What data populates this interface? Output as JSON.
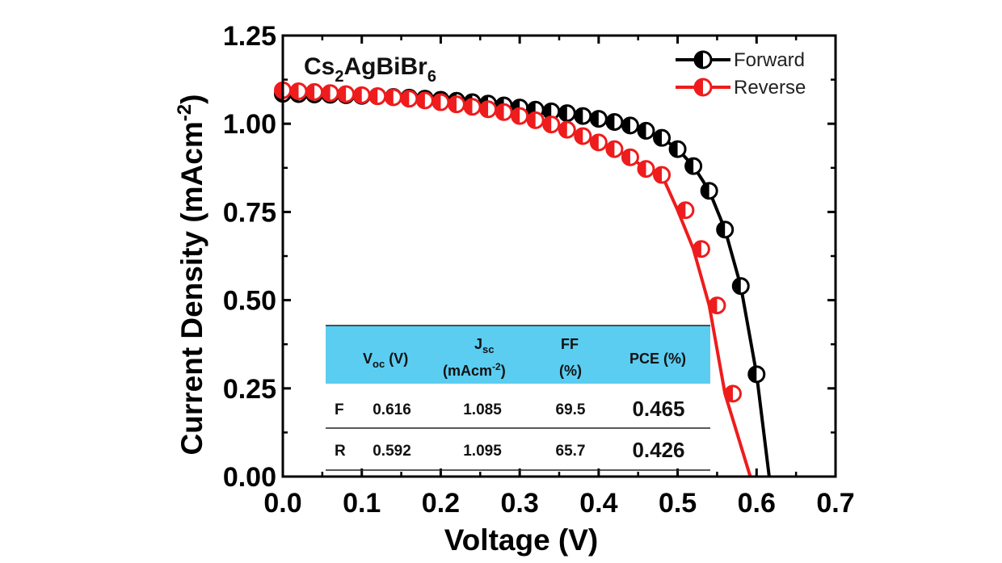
{
  "chart_data": {
    "type": "line",
    "title": "Cs₂AgBiBr₆",
    "title_parts": {
      "base": "Cs",
      "sub1": "2",
      "mid": "AgBiBr",
      "sub2": "6"
    },
    "xlabel": "Voltage (V)",
    "ylabel": "Current Density (mAcm⁻²)",
    "ylabel_parts": {
      "base": "Current Density (mAcm",
      "sup": "-2",
      "end": ")"
    },
    "xlim": [
      0,
      0.7
    ],
    "ylim": [
      0,
      1.25
    ],
    "x_ticks": [
      "0.0",
      "0.1",
      "0.2",
      "0.3",
      "0.4",
      "0.5",
      "0.6",
      "0.7"
    ],
    "y_ticks": [
      "0.00",
      "0.25",
      "0.50",
      "0.75",
      "1.00",
      "1.25"
    ],
    "legend_position": "top-right",
    "series": [
      {
        "name": "Forward",
        "color": "#000000",
        "points": [
          [
            0.0,
            1.085
          ],
          [
            0.02,
            1.084
          ],
          [
            0.04,
            1.083
          ],
          [
            0.06,
            1.082
          ],
          [
            0.08,
            1.081
          ],
          [
            0.1,
            1.079
          ],
          [
            0.12,
            1.078
          ],
          [
            0.14,
            1.076
          ],
          [
            0.16,
            1.074
          ],
          [
            0.18,
            1.071
          ],
          [
            0.2,
            1.068
          ],
          [
            0.22,
            1.065
          ],
          [
            0.24,
            1.061
          ],
          [
            0.26,
            1.057
          ],
          [
            0.28,
            1.052
          ],
          [
            0.3,
            1.046
          ],
          [
            0.32,
            1.04
          ],
          [
            0.34,
            1.035
          ],
          [
            0.36,
            1.03
          ],
          [
            0.38,
            1.022
          ],
          [
            0.4,
            1.014
          ],
          [
            0.42,
            1.005
          ],
          [
            0.44,
            0.995
          ],
          [
            0.46,
            0.98
          ],
          [
            0.48,
            0.96
          ],
          [
            0.5,
            0.928
          ],
          [
            0.52,
            0.88
          ],
          [
            0.54,
            0.81
          ],
          [
            0.56,
            0.7
          ],
          [
            0.58,
            0.54
          ],
          [
            0.6,
            0.29
          ],
          [
            0.616,
            0.0
          ]
        ]
      },
      {
        "name": "Reverse",
        "color": "#ee1c1c",
        "points": [
          [
            0.0,
            1.095
          ],
          [
            0.02,
            1.092
          ],
          [
            0.04,
            1.09
          ],
          [
            0.06,
            1.087
          ],
          [
            0.08,
            1.084
          ],
          [
            0.1,
            1.081
          ],
          [
            0.12,
            1.078
          ],
          [
            0.14,
            1.075
          ],
          [
            0.16,
            1.071
          ],
          [
            0.18,
            1.066
          ],
          [
            0.2,
            1.061
          ],
          [
            0.22,
            1.055
          ],
          [
            0.24,
            1.048
          ],
          [
            0.26,
            1.041
          ],
          [
            0.28,
            1.033
          ],
          [
            0.3,
            1.022
          ],
          [
            0.32,
            1.01
          ],
          [
            0.34,
            0.998
          ],
          [
            0.36,
            0.983
          ],
          [
            0.38,
            0.965
          ],
          [
            0.4,
            0.947
          ],
          [
            0.42,
            0.928
          ],
          [
            0.44,
            0.905
          ],
          [
            0.46,
            0.872
          ],
          [
            0.48,
            0.855
          ],
          [
            0.5,
            0.755
          ],
          [
            0.52,
            0.645
          ],
          [
            0.54,
            0.485
          ],
          [
            0.56,
            0.235
          ],
          [
            0.592,
            0.0
          ]
        ],
        "marker_points_override": [
          [
            0.0,
            1.095
          ],
          [
            0.02,
            1.092
          ],
          [
            0.04,
            1.09
          ],
          [
            0.06,
            1.087
          ],
          [
            0.08,
            1.084
          ],
          [
            0.1,
            1.081
          ],
          [
            0.12,
            1.078
          ],
          [
            0.14,
            1.075
          ],
          [
            0.16,
            1.071
          ],
          [
            0.18,
            1.066
          ],
          [
            0.2,
            1.061
          ],
          [
            0.22,
            1.055
          ],
          [
            0.24,
            1.048
          ],
          [
            0.26,
            1.041
          ],
          [
            0.28,
            1.033
          ],
          [
            0.3,
            1.022
          ],
          [
            0.32,
            1.01
          ],
          [
            0.34,
            0.998
          ],
          [
            0.36,
            0.983
          ],
          [
            0.38,
            0.965
          ],
          [
            0.4,
            0.947
          ],
          [
            0.42,
            0.928
          ],
          [
            0.44,
            0.905
          ],
          [
            0.46,
            0.872
          ],
          [
            0.48,
            0.855
          ],
          [
            0.51,
            0.755
          ],
          [
            0.53,
            0.645
          ],
          [
            0.55,
            0.485
          ],
          [
            0.57,
            0.235
          ]
        ]
      }
    ],
    "inset_table": {
      "header_color": "#5bcdf1",
      "headers": [
        {
          "main": "V",
          "sub": "oc",
          "rest": " (V)"
        },
        {
          "main": "J",
          "sub": "sc",
          "line2_base": "(mAcm",
          "line2_sup": "-2",
          "line2_end": ")"
        },
        {
          "main": "FF",
          "line2": "(%)"
        },
        {
          "main": "PCE (%)"
        }
      ],
      "rows": [
        {
          "label": "F",
          "voc": "0.616",
          "jsc": "1.085",
          "ff": "69.5",
          "pce": "0.465"
        },
        {
          "label": "R",
          "voc": "0.592",
          "jsc": "1.095",
          "ff": "65.7",
          "pce": "0.426"
        }
      ]
    }
  }
}
